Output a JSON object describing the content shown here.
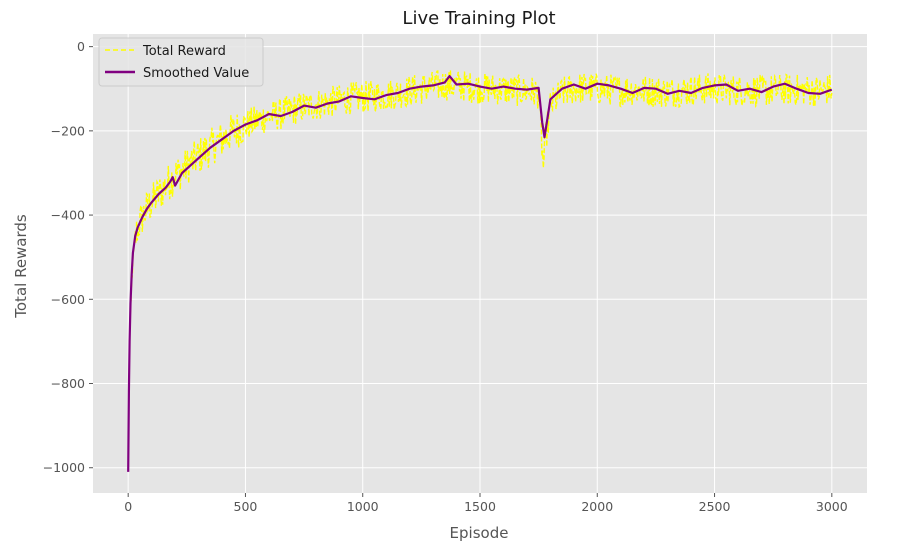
{
  "chart_data": {
    "type": "line",
    "title": "Live Training Plot",
    "xlabel": "Episode",
    "ylabel": "Total Rewards",
    "xlim": [
      -150,
      3150
    ],
    "ylim": [
      -1060,
      30
    ],
    "xticks": [
      0,
      500,
      1000,
      1500,
      2000,
      2500,
      3000
    ],
    "yticks": [
      0,
      -200,
      -400,
      -600,
      -800,
      -1000
    ],
    "xtick_labels": [
      "0",
      "500",
      "1000",
      "1500",
      "2000",
      "2500",
      "3000"
    ],
    "ytick_labels": [
      "0",
      "−200",
      "−400",
      "−600",
      "−800",
      "−1000"
    ],
    "grid": true,
    "legend_position": "upper-left",
    "colors": {
      "background": "#e5e5e5",
      "grid": "#ffffff",
      "raw": "#ffff00",
      "smoothed": "#800080"
    },
    "series": [
      {
        "name": "Total Reward",
        "style": "dashed",
        "color": "#ffff00",
        "points": [
          [
            0,
            -1010
          ],
          [
            3,
            -800
          ],
          [
            6,
            -700
          ],
          [
            10,
            -640
          ],
          [
            15,
            -560
          ],
          [
            20,
            -510
          ],
          [
            30,
            -460
          ],
          [
            40,
            -430
          ],
          [
            60,
            -405
          ],
          [
            80,
            -385
          ],
          [
            100,
            -370
          ],
          [
            130,
            -350
          ],
          [
            160,
            -330
          ],
          [
            200,
            -305
          ],
          [
            250,
            -285
          ],
          [
            300,
            -260
          ],
          [
            350,
            -240
          ],
          [
            400,
            -220
          ],
          [
            450,
            -200
          ],
          [
            500,
            -188
          ],
          [
            550,
            -175
          ],
          [
            600,
            -165
          ],
          [
            650,
            -160
          ],
          [
            700,
            -150
          ],
          [
            750,
            -143
          ],
          [
            800,
            -138
          ],
          [
            850,
            -133
          ],
          [
            900,
            -128
          ],
          [
            950,
            -122
          ],
          [
            1000,
            -120
          ],
          [
            1050,
            -118
          ],
          [
            1100,
            -115
          ],
          [
            1150,
            -110
          ],
          [
            1200,
            -105
          ],
          [
            1250,
            -100
          ],
          [
            1300,
            -95
          ],
          [
            1350,
            -90
          ],
          [
            1400,
            -92
          ],
          [
            1450,
            -95
          ],
          [
            1500,
            -98
          ],
          [
            1550,
            -100
          ],
          [
            1600,
            -102
          ],
          [
            1650,
            -104
          ],
          [
            1700,
            -105
          ],
          [
            1750,
            -110
          ],
          [
            1760,
            -200
          ],
          [
            1770,
            -285
          ],
          [
            1780,
            -220
          ],
          [
            1800,
            -140
          ],
          [
            1850,
            -110
          ],
          [
            1900,
            -100
          ],
          [
            1950,
            -98
          ],
          [
            2000,
            -100
          ],
          [
            2050,
            -102
          ],
          [
            2100,
            -104
          ],
          [
            2150,
            -102
          ],
          [
            2200,
            -105
          ],
          [
            2250,
            -106
          ],
          [
            2300,
            -108
          ],
          [
            2350,
            -105
          ],
          [
            2400,
            -103
          ],
          [
            2450,
            -100
          ],
          [
            2500,
            -100
          ],
          [
            2550,
            -102
          ],
          [
            2600,
            -104
          ],
          [
            2650,
            -103
          ],
          [
            2700,
            -105
          ],
          [
            2750,
            -104
          ],
          [
            2800,
            -102
          ],
          [
            2850,
            -103
          ],
          [
            2900,
            -104
          ],
          [
            2950,
            -106
          ],
          [
            3000,
            -100
          ]
        ]
      },
      {
        "name": "Smoothed Value",
        "style": "solid",
        "color": "#800080",
        "points": [
          [
            0,
            -1010
          ],
          [
            3,
            -820
          ],
          [
            6,
            -700
          ],
          [
            10,
            -610
          ],
          [
            15,
            -540
          ],
          [
            20,
            -490
          ],
          [
            30,
            -450
          ],
          [
            40,
            -430
          ],
          [
            60,
            -405
          ],
          [
            80,
            -385
          ],
          [
            100,
            -370
          ],
          [
            130,
            -350
          ],
          [
            160,
            -335
          ],
          [
            180,
            -320
          ],
          [
            190,
            -310
          ],
          [
            200,
            -330
          ],
          [
            230,
            -300
          ],
          [
            260,
            -285
          ],
          [
            300,
            -265
          ],
          [
            350,
            -240
          ],
          [
            400,
            -220
          ],
          [
            450,
            -200
          ],
          [
            500,
            -185
          ],
          [
            550,
            -175
          ],
          [
            600,
            -160
          ],
          [
            650,
            -165
          ],
          [
            700,
            -155
          ],
          [
            750,
            -140
          ],
          [
            800,
            -145
          ],
          [
            850,
            -135
          ],
          [
            900,
            -130
          ],
          [
            950,
            -118
          ],
          [
            1000,
            -122
          ],
          [
            1050,
            -125
          ],
          [
            1100,
            -115
          ],
          [
            1150,
            -110
          ],
          [
            1200,
            -100
          ],
          [
            1250,
            -95
          ],
          [
            1300,
            -92
          ],
          [
            1350,
            -85
          ],
          [
            1370,
            -70
          ],
          [
            1400,
            -90
          ],
          [
            1450,
            -88
          ],
          [
            1500,
            -95
          ],
          [
            1550,
            -100
          ],
          [
            1600,
            -95
          ],
          [
            1650,
            -100
          ],
          [
            1700,
            -102
          ],
          [
            1750,
            -98
          ],
          [
            1765,
            -180
          ],
          [
            1775,
            -215
          ],
          [
            1785,
            -180
          ],
          [
            1800,
            -125
          ],
          [
            1850,
            -100
          ],
          [
            1900,
            -90
          ],
          [
            1950,
            -100
          ],
          [
            2000,
            -88
          ],
          [
            2050,
            -92
          ],
          [
            2100,
            -100
          ],
          [
            2150,
            -110
          ],
          [
            2200,
            -98
          ],
          [
            2250,
            -100
          ],
          [
            2300,
            -112
          ],
          [
            2350,
            -105
          ],
          [
            2400,
            -110
          ],
          [
            2450,
            -98
          ],
          [
            2500,
            -92
          ],
          [
            2550,
            -90
          ],
          [
            2600,
            -105
          ],
          [
            2650,
            -100
          ],
          [
            2700,
            -108
          ],
          [
            2750,
            -95
          ],
          [
            2800,
            -88
          ],
          [
            2850,
            -100
          ],
          [
            2900,
            -110
          ],
          [
            2950,
            -112
          ],
          [
            3000,
            -102
          ]
        ]
      }
    ]
  }
}
